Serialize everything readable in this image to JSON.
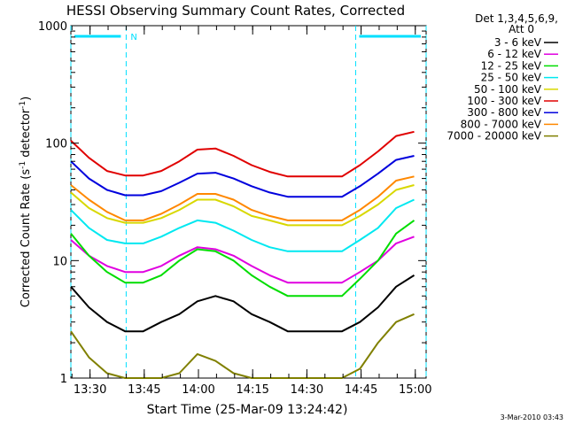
{
  "chart_data": {
    "type": "line",
    "title": "HESSI Observing Summary Count Rates, Corrected",
    "xlabel": "Start Time (25-Mar-09 13:24:42)",
    "ylabel_main": "Corrected Count Rate (s",
    "ylabel_sup1": "-1",
    "ylabel_mid": " detector",
    "ylabel_sup2": "-1",
    "ylabel_end": ")",
    "footer": "3-Mar-2010 03:43",
    "y_scale": "log",
    "ylim": [
      1,
      1000
    ],
    "xlim": [
      "13:24:42",
      "15:03:00"
    ],
    "x_ticks": [
      "13:30",
      "13:45",
      "14:00",
      "14:15",
      "14:30",
      "14:45",
      "15:00"
    ],
    "y_ticks": [
      "1",
      "10",
      "100",
      "1000"
    ],
    "legend": {
      "header1": "Det 1,3,4,5,6,9,",
      "header2": "Att 0",
      "placement": "outside-right"
    },
    "night_markers": [
      {
        "label": "N",
        "start": "13:24:42",
        "end": "13:40:00"
      },
      {
        "label": "",
        "start": "14:43:30",
        "end": "15:03:00"
      }
    ],
    "night_bar_color": "#00e0ff",
    "series": [
      {
        "name": "3 - 6 keV",
        "color": "#000000"
      },
      {
        "name": "6 - 12 keV",
        "color": "#e000e0"
      },
      {
        "name": "12 - 25 keV",
        "color": "#00dd00"
      },
      {
        "name": "25 - 50 keV",
        "color": "#00e8f0"
      },
      {
        "name": "50 - 100 keV",
        "color": "#d8d800"
      },
      {
        "name": "100 - 300 keV",
        "color": "#e00000"
      },
      {
        "name": "300 - 800 keV",
        "color": "#0000dd"
      },
      {
        "name": "800 - 7000 keV",
        "color": "#ff8800"
      },
      {
        "name": "7000 - 20000 keV",
        "color": "#808000"
      }
    ],
    "x_minutes": [
      0,
      5,
      10,
      15,
      20,
      25,
      30,
      35,
      40,
      45,
      50,
      55,
      60,
      65,
      70,
      75,
      80,
      85,
      90,
      95
    ],
    "values": {
      "3 - 6 keV": [
        6,
        4,
        3,
        2.5,
        2.5,
        3,
        3.5,
        4.5,
        5,
        4.5,
        3.5,
        3,
        2.5,
        2.5,
        2.5,
        2.5,
        3,
        4,
        6,
        7.5
      ],
      "6 - 12 keV": [
        15,
        11,
        9,
        8,
        8,
        9,
        11,
        13,
        12.5,
        11,
        9,
        7.5,
        6.5,
        6.5,
        6.5,
        6.5,
        8,
        10,
        14,
        16
      ],
      "12 - 25 keV": [
        17,
        11,
        8,
        6.5,
        6.5,
        7.5,
        10,
        12.5,
        12,
        10,
        7.5,
        6,
        5,
        5,
        5,
        5,
        7,
        10,
        17,
        22
      ],
      "25 - 50 keV": [
        27,
        19,
        15,
        14,
        14,
        16,
        19,
        22,
        21,
        18,
        15,
        13,
        12,
        12,
        12,
        12,
        15,
        19,
        28,
        33
      ],
      "50 - 100 keV": [
        38,
        28,
        23,
        21,
        21,
        23,
        27,
        33,
        33,
        29,
        24,
        22,
        20,
        20,
        20,
        20,
        24,
        30,
        40,
        44
      ],
      "100 - 300 keV": [
        105,
        75,
        58,
        53,
        53,
        58,
        70,
        88,
        90,
        78,
        65,
        57,
        52,
        52,
        52,
        52,
        65,
        85,
        115,
        125
      ],
      "300 - 800 keV": [
        70,
        50,
        40,
        36,
        36,
        39,
        46,
        55,
        56,
        50,
        43,
        38,
        35,
        35,
        35,
        35,
        43,
        55,
        72,
        78
      ],
      "800 - 7000 keV": [
        44,
        33,
        26,
        22,
        22,
        25,
        30,
        37,
        37,
        33,
        27,
        24,
        22,
        22,
        22,
        22,
        27,
        35,
        48,
        52
      ],
      "7000 - 20000 keV": [
        2.5,
        1.5,
        1.1,
        1,
        1,
        1,
        1.1,
        1.6,
        1.4,
        1.1,
        1,
        1,
        1,
        1,
        1,
        1,
        1.2,
        2,
        3,
        3.5
      ]
    }
  }
}
